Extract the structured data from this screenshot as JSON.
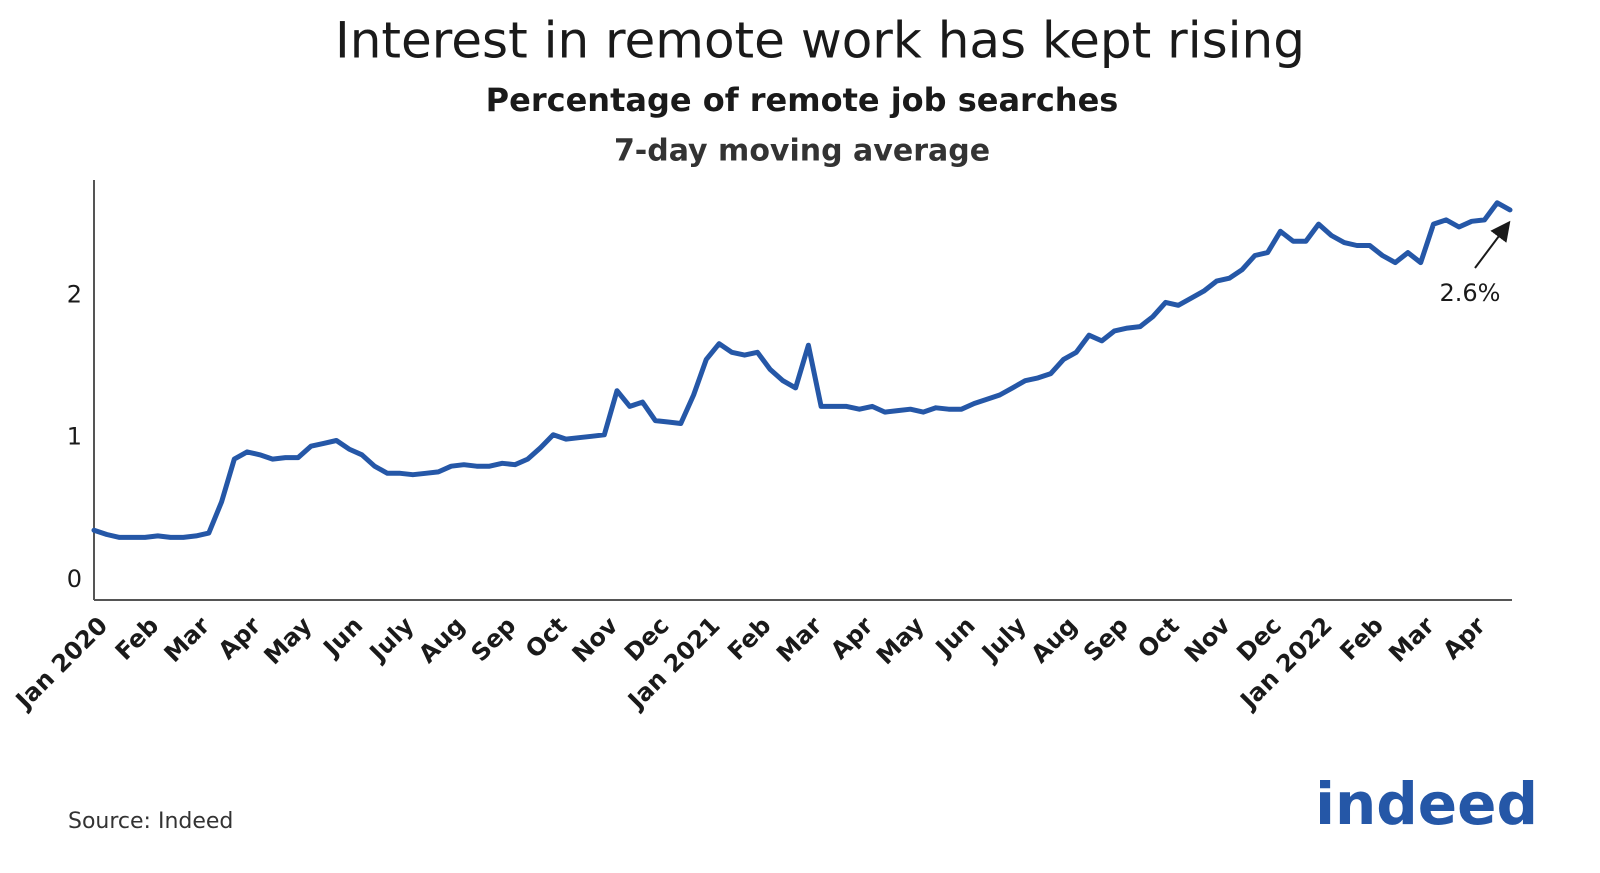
{
  "chart_data": {
    "type": "line",
    "title": "Interest in remote work has kept rising",
    "subtitle": "Percentage of remote job searches",
    "subsubtitle": "7-day moving average",
    "categories": [
      "Jan 2020",
      null,
      null,
      null,
      "Feb",
      null,
      null,
      null,
      "Mar",
      null,
      null,
      null,
      "Apr",
      null,
      null,
      null,
      "May",
      null,
      null,
      null,
      "Jun",
      null,
      null,
      null,
      "July",
      null,
      null,
      null,
      "Aug",
      null,
      null,
      null,
      "Sep",
      null,
      null,
      null,
      "Oct",
      null,
      null,
      null,
      "Nov",
      null,
      null,
      null,
      "Dec",
      null,
      null,
      null,
      "Jan 2021",
      null,
      null,
      null,
      "Feb",
      null,
      null,
      null,
      "Mar",
      null,
      null,
      null,
      "Apr",
      null,
      null,
      null,
      "May",
      null,
      null,
      null,
      "Jun",
      null,
      null,
      null,
      "July",
      null,
      null,
      null,
      "Aug",
      null,
      null,
      null,
      "Sep",
      null,
      null,
      null,
      "Oct",
      null,
      null,
      null,
      "Nov",
      null,
      null,
      null,
      "Dec",
      null,
      null,
      null,
      "Jan 2022",
      null,
      null,
      null,
      "Feb",
      null,
      null,
      null,
      "Mar",
      null,
      null,
      null,
      "Apr",
      null,
      null,
      null
    ],
    "values": [
      0.35,
      0.32,
      0.3,
      0.3,
      0.3,
      0.31,
      0.3,
      0.3,
      0.31,
      0.33,
      0.55,
      0.85,
      0.9,
      0.88,
      0.85,
      0.86,
      0.86,
      0.94,
      0.96,
      0.98,
      0.92,
      0.88,
      0.8,
      0.75,
      0.75,
      0.74,
      0.75,
      0.76,
      0.8,
      0.81,
      0.8,
      0.8,
      0.82,
      0.81,
      0.85,
      0.93,
      1.02,
      0.99,
      1.0,
      1.01,
      1.02,
      1.33,
      1.22,
      1.25,
      1.12,
      1.11,
      1.1,
      1.3,
      1.55,
      1.66,
      1.6,
      1.58,
      1.6,
      1.48,
      1.4,
      1.35,
      1.65,
      1.22,
      1.22,
      1.22,
      1.2,
      1.22,
      1.18,
      1.19,
      1.2,
      1.18,
      1.21,
      1.2,
      1.2,
      1.24,
      1.27,
      1.3,
      1.35,
      1.4,
      1.42,
      1.45,
      1.55,
      1.6,
      1.72,
      1.68,
      1.75,
      1.77,
      1.78,
      1.85,
      1.95,
      1.93,
      1.98,
      2.03,
      2.1,
      2.12,
      2.18,
      2.28,
      2.3,
      2.45,
      2.38,
      2.38,
      2.5,
      2.42,
      2.37,
      2.35,
      2.35,
      2.28,
      2.23,
      2.3,
      2.23,
      2.5,
      2.53,
      2.48,
      2.52,
      2.53,
      2.65,
      2.6
    ],
    "color": "#2557a7",
    "ylim": [
      -0.14,
      2.81
    ],
    "yticks": [
      0,
      1,
      2
    ],
    "grid": false,
    "annotation": "2.6%",
    "source": "Source: Indeed",
    "logo": "indeed",
    "logo_color": "#2557a7"
  }
}
